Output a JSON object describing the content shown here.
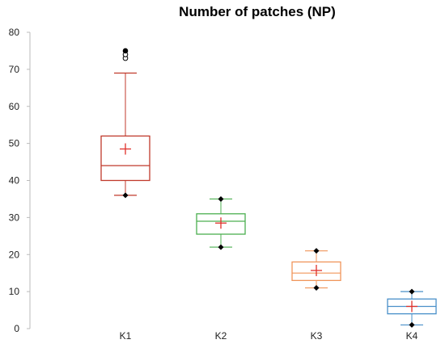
{
  "chart_data": {
    "type": "box",
    "title": "Number of patches (NP)",
    "xlabel": "",
    "ylabel": "",
    "ylim": [
      0,
      80
    ],
    "yticks": [
      "0",
      "10",
      "20",
      "30",
      "40",
      "50",
      "60",
      "70",
      "80"
    ],
    "categories": [
      "K1",
      "K2",
      "K3",
      "K4"
    ],
    "boxes": [
      {
        "category": "K1",
        "whisker_low": 36,
        "q1": 40,
        "median": 44,
        "q3": 52,
        "whisker_high": 69,
        "mean": 48.5,
        "min": 36,
        "outliers": [
          73,
          74,
          75
        ],
        "color": "#c0392b"
      },
      {
        "category": "K2",
        "whisker_low": 22,
        "q1": 25.5,
        "median": 29,
        "q3": 31,
        "whisker_high": 35,
        "mean": 28.5,
        "min": 22,
        "max": 35,
        "outliers": [],
        "color": "#4caf50"
      },
      {
        "category": "K3",
        "whisker_low": 11,
        "q1": 13,
        "median": 15,
        "q3": 18,
        "whisker_high": 21,
        "mean": 15.7,
        "min": 11,
        "max": 21,
        "outliers": [],
        "color": "#f0955a"
      },
      {
        "category": "K4",
        "whisker_low": 1,
        "q1": 4,
        "median": 6,
        "q3": 8,
        "whisker_high": 10,
        "mean": 6,
        "min": 1,
        "max": 10,
        "outliers": [],
        "color": "#4a90c9"
      }
    ],
    "mean_marker_color": "#e0302a",
    "grid": false
  }
}
